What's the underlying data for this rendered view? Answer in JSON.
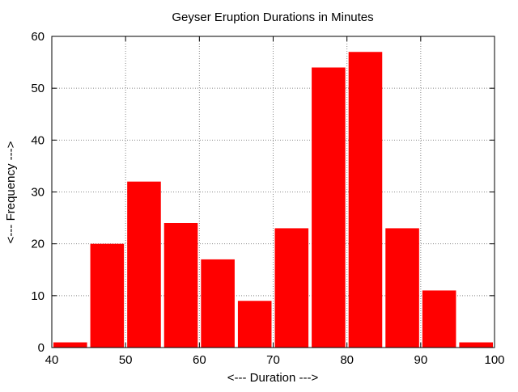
{
  "chart_data": {
    "type": "bar",
    "title": "Geyser Eruption Durations in Minutes",
    "xlabel": "<--- Duration --->",
    "ylabel": "<--- Frequency --->",
    "bin_width": 5,
    "bins": [
      {
        "start": 40,
        "end": 45,
        "value": 1
      },
      {
        "start": 45,
        "end": 50,
        "value": 20
      },
      {
        "start": 50,
        "end": 55,
        "value": 32
      },
      {
        "start": 55,
        "end": 60,
        "value": 24
      },
      {
        "start": 60,
        "end": 65,
        "value": 17
      },
      {
        "start": 65,
        "end": 70,
        "value": 9
      },
      {
        "start": 70,
        "end": 75,
        "value": 23
      },
      {
        "start": 75,
        "end": 80,
        "value": 54
      },
      {
        "start": 80,
        "end": 85,
        "value": 57
      },
      {
        "start": 85,
        "end": 90,
        "value": 23
      },
      {
        "start": 90,
        "end": 95,
        "value": 11
      },
      {
        "start": 95,
        "end": 100,
        "value": 1
      }
    ],
    "xlim": [
      40,
      100
    ],
    "ylim": [
      0,
      60
    ],
    "xticks": [
      40,
      50,
      60,
      70,
      80,
      90,
      100
    ],
    "yticks": [
      0,
      10,
      20,
      30,
      40,
      50,
      60
    ],
    "grid": true,
    "legend": "none",
    "bar_color": "#ff0000",
    "grid_color": "#888888"
  }
}
